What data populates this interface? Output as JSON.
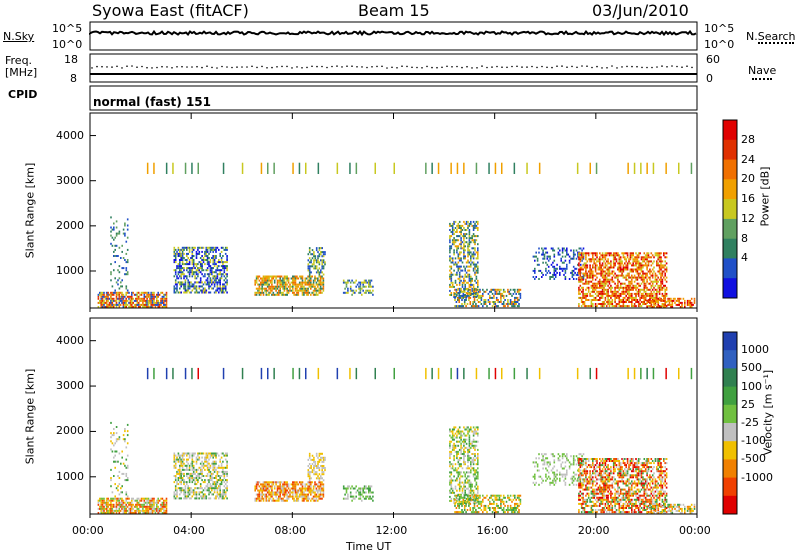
{
  "header": {
    "station": "Syowa East (fitACF)",
    "beam": "Beam 15",
    "date": "03/Jun/2010"
  },
  "top_panels": {
    "nsky_label": "N.Sky",
    "nsky_ticks": [
      "10^5",
      "10^0"
    ],
    "nsearch_label": "N.Search",
    "nsearch_ticks": [
      "10^5",
      "10^0"
    ],
    "freq_label": "Freq.",
    "freq_unit": "[MHz]",
    "freq_ticks": [
      "18",
      "8"
    ],
    "nave_label": "Nave",
    "nave_ticks": [
      "60",
      "0"
    ],
    "cpid_label": "CPID",
    "cpid_text": "normal (fast) 151"
  },
  "chart_data": [
    {
      "type": "heatmap",
      "name": "power-panel",
      "ylabel": "Slant Range [km]",
      "xlabel": "",
      "yticks": [
        "1000",
        "2000",
        "3000",
        "4000"
      ],
      "ylim": [
        180,
        4500
      ],
      "xlim": [
        0,
        24
      ],
      "colorbar_label": "Power [dB]",
      "colorbar_ticks": [
        "4",
        "8",
        "12",
        "16",
        "20",
        "24",
        "28"
      ],
      "colors": [
        "#1010e0",
        "#2050c8",
        "#308060",
        "#60a060",
        "#c8c820",
        "#f0a000",
        "#f07000",
        "#e03000",
        "#e00000"
      ]
    },
    {
      "type": "heatmap",
      "name": "velocity-panel",
      "ylabel": "Slant Range [km]",
      "xlabel": "Time UT",
      "yticks": [
        "1000",
        "2000",
        "3000",
        "4000"
      ],
      "ylim": [
        180,
        4500
      ],
      "xlim": [
        0,
        24
      ],
      "xticks": [
        "00:00",
        "04:00",
        "08:00",
        "12:00",
        "16:00",
        "20:00",
        "00:00"
      ],
      "colorbar_label": "Velocity [m s⁻¹]",
      "colorbar_ticks": [
        "1000",
        "500",
        "100",
        "25",
        "-25",
        "-100",
        "-500",
        "-1000"
      ],
      "colors": [
        "#2040b0",
        "#3060c0",
        "#308050",
        "#40a040",
        "#70c040",
        "#c0c0c0",
        "#f0c000",
        "#f08000",
        "#f04000",
        "#e00000"
      ]
    }
  ]
}
